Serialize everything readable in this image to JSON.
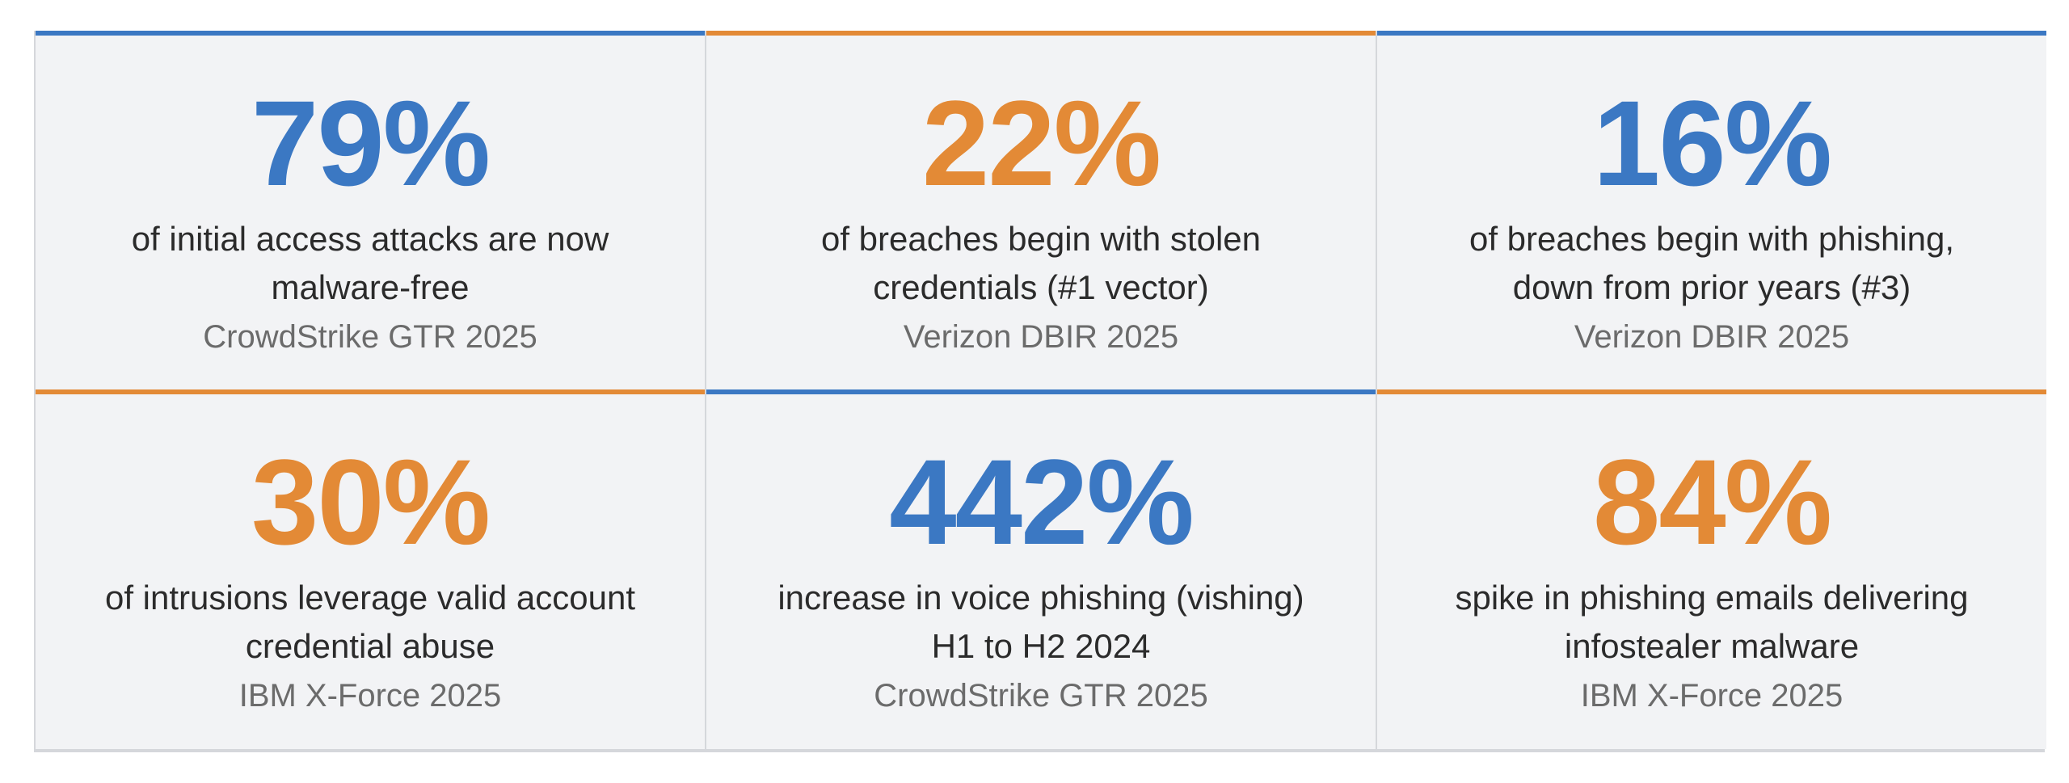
{
  "colors": {
    "blue": "#3b78c3",
    "orange": "#e38a36",
    "card_background": "#f2f3f5",
    "border": "#d5d7db"
  },
  "stats": [
    {
      "value": "79%",
      "accent": "blue",
      "description_line1": "of initial access attacks are now",
      "description_line2": "malware-free",
      "source": "CrowdStrike GTR 2025"
    },
    {
      "value": "22%",
      "accent": "orange",
      "description_line1": "of breaches begin with stolen",
      "description_line2": "credentials (#1 vector)",
      "source": "Verizon DBIR 2025"
    },
    {
      "value": "16%",
      "accent": "blue",
      "description_line1": "of breaches begin with phishing,",
      "description_line2": "down from prior years (#3)",
      "source": "Verizon DBIR 2025"
    },
    {
      "value": "30%",
      "accent": "orange",
      "description_line1": "of intrusions leverage valid account",
      "description_line2": "credential abuse",
      "source": "IBM X-Force 2025"
    },
    {
      "value": "442%",
      "accent": "blue",
      "description_line1": "increase in voice phishing (vishing)",
      "description_line2": "H1 to H2 2024",
      "source": "CrowdStrike GTR 2025"
    },
    {
      "value": "84%",
      "accent": "orange",
      "description_line1": "spike in phishing emails delivering",
      "description_line2": "infostealer malware",
      "source": "IBM X-Force 2025"
    }
  ]
}
